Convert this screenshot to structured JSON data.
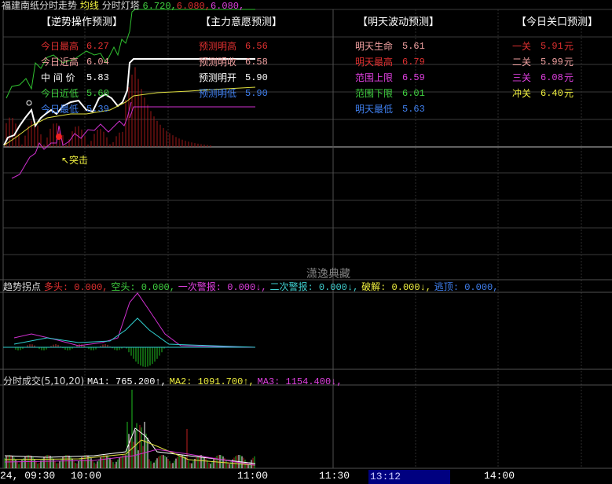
{
  "title": {
    "stock": "福建南纸分时走势",
    "avg_label": "均线",
    "lighthouse_label": "分时灯塔",
    "v1": "6.720,",
    "v2": "6.080,",
    "v3": "6.080,"
  },
  "panels": [
    {
      "header": "【逆势操作预测】",
      "rows": [
        {
          "label": "今日最高",
          "value": "6.27",
          "color": "#e03030"
        },
        {
          "label": "今日近高",
          "value": "6.04",
          "color": "#f0a0a0"
        },
        {
          "label": "中 间 价",
          "value": "5.83",
          "color": "#ffffff"
        },
        {
          "label": "今日近低",
          "value": "5.60",
          "color": "#40d040"
        },
        {
          "label": "今日最低",
          "value": "5.39",
          "color": "#4080f0"
        }
      ]
    },
    {
      "header": "【主力意愿预测】",
      "rows": [
        {
          "label": "预测明高",
          "value": "6.56",
          "color": "#e03030"
        },
        {
          "label": "预测明收",
          "value": "6.58",
          "color": "#f0a0a0"
        },
        {
          "label": "预测明开",
          "value": "5.90",
          "color": "#ffffff"
        },
        {
          "label": "预测明低",
          "value": "5.90",
          "color": "#4080f0"
        }
      ]
    },
    {
      "header": "【明天波动预测】",
      "rows": [
        {
          "label": "明天生命",
          "value": "5.61",
          "color": "#f0a0a0"
        },
        {
          "label": "明天最高",
          "value": "6.79",
          "color": "#e03030"
        },
        {
          "label": "范围上限",
          "value": "6.59",
          "color": "#e040e0"
        },
        {
          "label": "范围下限",
          "value": "6.01",
          "color": "#40d040"
        },
        {
          "label": "明天最低",
          "value": "5.63",
          "color": "#4080f0"
        }
      ]
    },
    {
      "header": "【今日关口预测】",
      "rows": [
        {
          "label": "一关",
          "value": "5.91",
          "unit": "元",
          "color": "#e03030"
        },
        {
          "label": "二关",
          "value": "5.99",
          "unit": "元",
          "color": "#f0a0a0"
        },
        {
          "label": "三关",
          "value": "6.08",
          "unit": "元",
          "color": "#e040e0"
        },
        {
          "label": "冲关",
          "value": "6.40",
          "unit": "元",
          "color": "#f0f040"
        }
      ]
    }
  ],
  "annotation": "↖突击",
  "watermark": "潇逸典藏",
  "indicator": {
    "name": "趋势拐点",
    "items": [
      {
        "label": "多头",
        "value": "0.000,",
        "color": "#e03030"
      },
      {
        "label": "空头",
        "value": "0.000,",
        "color": "#40d040"
      },
      {
        "label": "一次警报",
        "value": "0.000↓,",
        "color": "#e040e0"
      },
      {
        "label": "二次警报",
        "value": "0.000↓,",
        "color": "#40d0d0"
      },
      {
        "label": "破解",
        "value": "0.000↓,",
        "color": "#f0f040"
      },
      {
        "label": "逃顶",
        "value": "0.000,",
        "color": "#4080f0"
      }
    ]
  },
  "volume": {
    "name": "分时成交(5,10,20)",
    "items": [
      {
        "label": "MA1",
        "value": "765.200↑,",
        "color": "#ffffff"
      },
      {
        "label": "MA2",
        "value": "1091.700↑,",
        "color": "#f0f040"
      },
      {
        "label": "MA3",
        "value": "1154.400↓,",
        "color": "#e040e0"
      }
    ]
  },
  "time_axis": {
    "labels": [
      "24, 09:30",
      "10:00",
      "11:00",
      "11:30",
      "14:00"
    ],
    "cursor": "13:12"
  }
}
